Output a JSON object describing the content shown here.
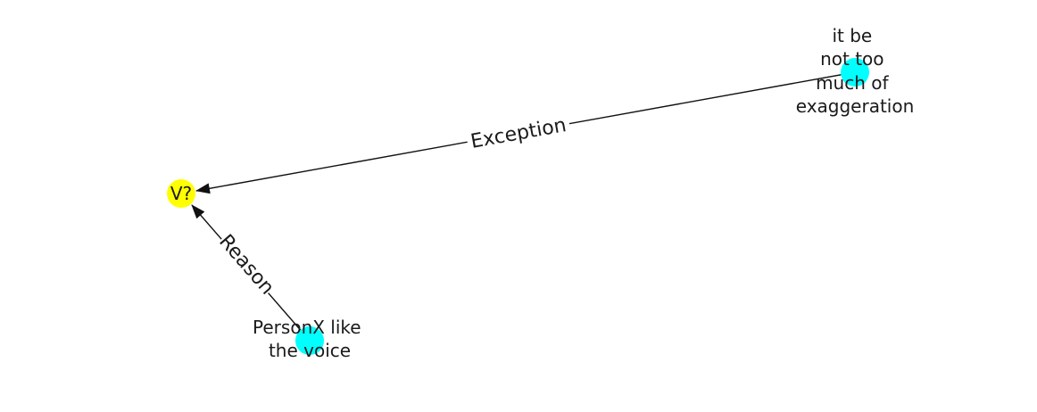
{
  "graph": {
    "nodes": [
      {
        "id": "v",
        "lines": [
          "V?"
        ],
        "color": "#ffff00"
      },
      {
        "id": "exception-source",
        "lines": [
          "it be",
          "not too",
          "much of",
          "exaggeration"
        ],
        "color": "#00ffff"
      },
      {
        "id": "reason-source",
        "lines": [
          "PersonX like",
          "the voice"
        ],
        "color": "#00ffff"
      }
    ],
    "edges": [
      {
        "from": "exception-source",
        "to": "v",
        "label": "Exception"
      },
      {
        "from": "reason-source",
        "to": "v",
        "label": "Reason"
      }
    ],
    "edge_color": "#111111",
    "label_background": "#ffffff"
  }
}
